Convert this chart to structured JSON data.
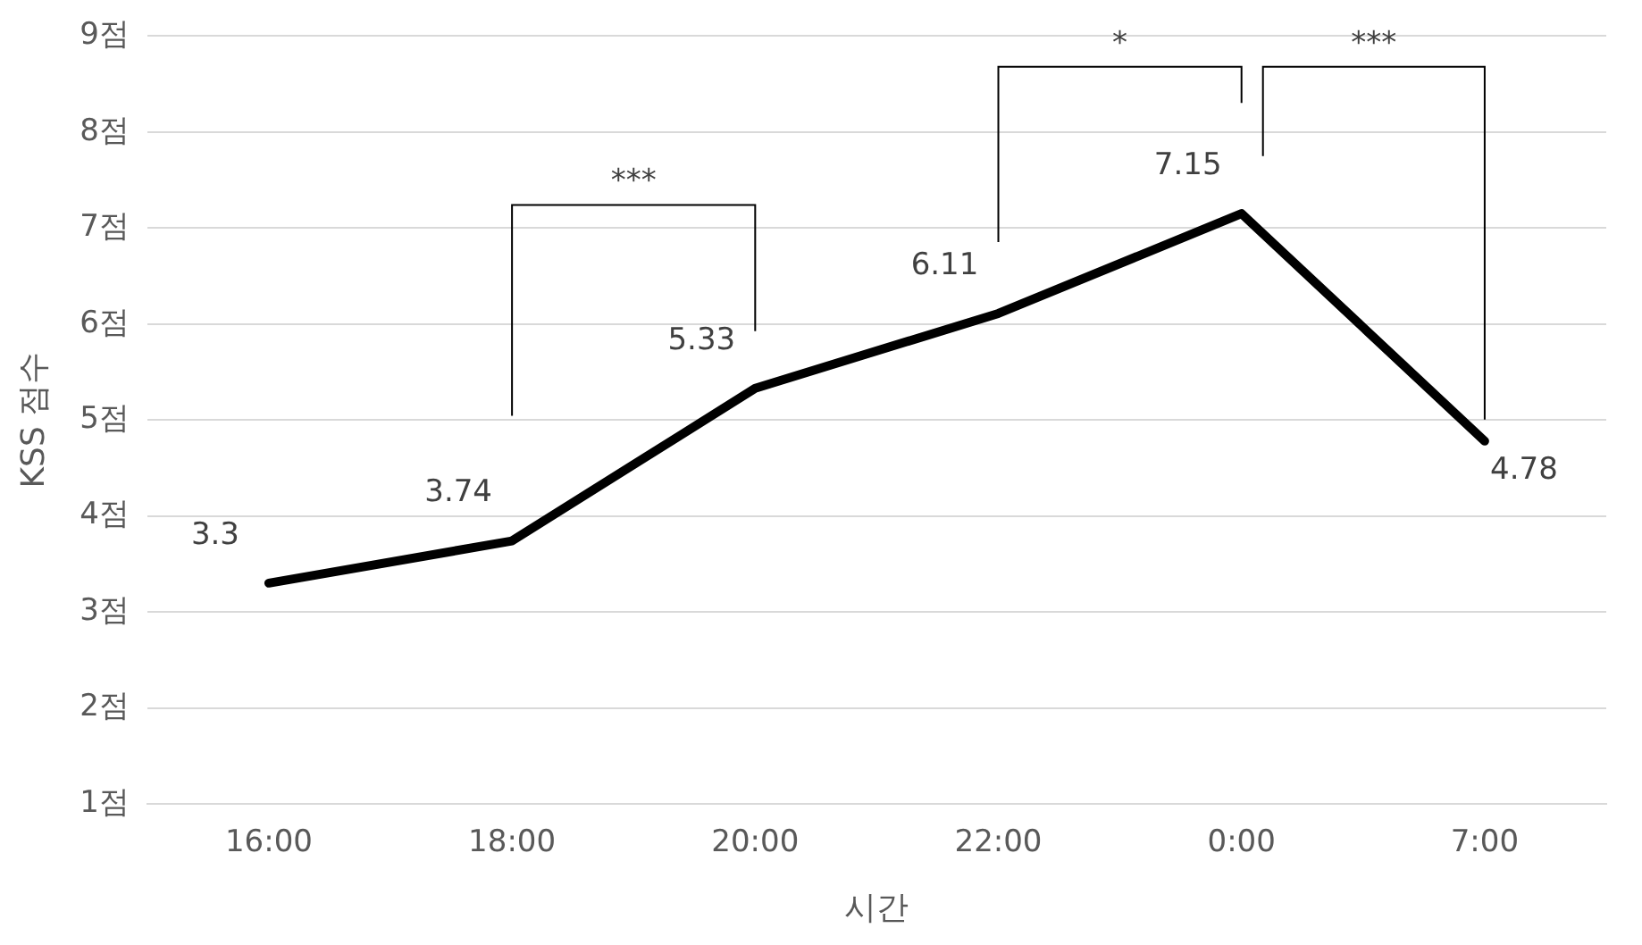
{
  "chart_data": {
    "type": "line",
    "xlabel": "시간",
    "ylabel": "KSS 점수",
    "categories": [
      "16:00",
      "18:00",
      "20:00",
      "22:00",
      "0:00",
      "7:00"
    ],
    "series": [
      {
        "color": "#000000",
        "values": [
          3.3,
          3.74,
          5.33,
          6.11,
          7.15,
          4.78
        ]
      }
    ],
    "ylim": [
      1,
      9
    ],
    "yticks": [
      {
        "value": 1,
        "label": "1점"
      },
      {
        "value": 2,
        "label": "2점"
      },
      {
        "value": 3,
        "label": "3점"
      },
      {
        "value": 4,
        "label": "4점"
      },
      {
        "value": 5,
        "label": "5점"
      },
      {
        "value": 6,
        "label": "6점"
      },
      {
        "value": 7,
        "label": "7점"
      },
      {
        "value": 8,
        "label": "8점"
      },
      {
        "value": 9,
        "label": "9점"
      }
    ],
    "grid": "y",
    "legend": false,
    "marker": "none",
    "line_style": "solid",
    "data_labels": true,
    "annotations": [
      "***",
      "*",
      "***"
    ]
  }
}
